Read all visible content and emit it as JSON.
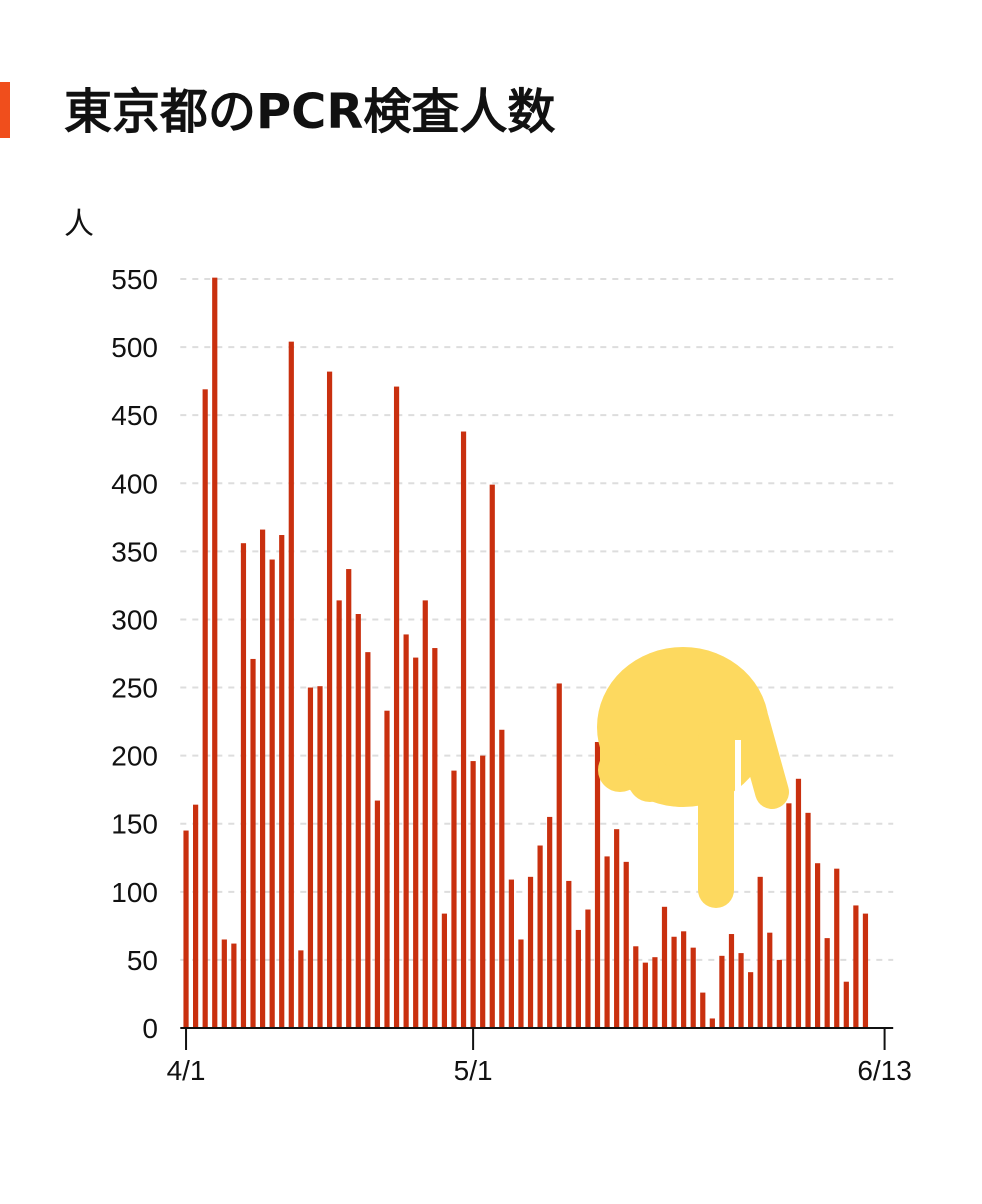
{
  "chart_data": {
    "type": "bar",
    "title": "東京都のPCR検査人数",
    "y_label": "人",
    "color": "#c9300f",
    "x": [
      0,
      1,
      2,
      3,
      4,
      5,
      6,
      7,
      8,
      9,
      10,
      11,
      12,
      13,
      14,
      15,
      16,
      17,
      18,
      19,
      20,
      21,
      22,
      23,
      24,
      25,
      26,
      27,
      28,
      29,
      30,
      31,
      32,
      33,
      34,
      35,
      36,
      37,
      38,
      39,
      40,
      41,
      42,
      43,
      44,
      45,
      46,
      47,
      48,
      49,
      50,
      51,
      52,
      53,
      54,
      55,
      56,
      57,
      58,
      59,
      60,
      61,
      62,
      63,
      64,
      65,
      66,
      67,
      68,
      69,
      70,
      71
    ],
    "values": [
      145,
      164,
      469,
      551,
      65,
      62,
      356,
      271,
      366,
      344,
      362,
      504,
      57,
      250,
      251,
      482,
      314,
      337,
      304,
      276,
      167,
      233,
      471,
      289,
      272,
      314,
      279,
      84,
      189,
      438,
      196,
      200,
      399,
      219,
      109,
      65,
      111,
      134,
      155,
      253,
      108,
      72,
      87,
      210,
      126,
      146,
      122,
      60,
      48,
      52,
      89,
      67,
      71,
      59,
      26,
      7,
      53,
      69,
      55,
      41,
      111,
      70,
      50,
      165,
      183,
      158,
      121,
      66,
      117,
      34,
      90,
      84
    ],
    "xlim": [
      -0.6,
      73.9
    ],
    "xticks": [
      {
        "value": 0,
        "label": "4/1"
      },
      {
        "value": 30,
        "label": "5/1"
      },
      {
        "value": 73,
        "label": "6/13"
      }
    ],
    "ylim": [
      0,
      550
    ],
    "yticks": [
      0,
      50,
      100,
      150,
      200,
      250,
      300,
      350,
      400,
      450,
      500,
      550
    ],
    "grid": true
  }
}
